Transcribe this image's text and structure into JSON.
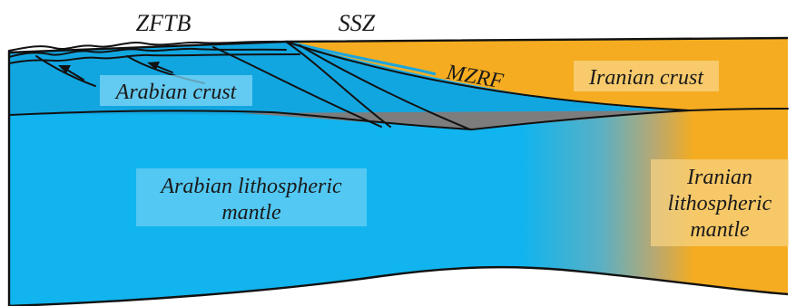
{
  "labels": {
    "zftb": "ZFTB",
    "ssz": "SSZ",
    "mzrf": "MZRF",
    "arabian_crust": "Arabian crust",
    "iranian_crust": "Iranian crust",
    "arabian_mantle_line1": "Arabian lithospheric",
    "arabian_mantle_line2": "mantle",
    "iranian_mantle_line1": "Iranian",
    "iranian_mantle_line2": "lithospheric",
    "iranian_mantle_line3": "mantle"
  },
  "colors": {
    "arabian_crust": "#12a6e1",
    "arabian_mantle": "#11b4ee",
    "iranian": "#f5ac20",
    "mantle_transition": "#8fa87a",
    "wedge_gray": "#7d7d7d",
    "label_box": "#7fd6f5",
    "label_box_iran": "#f8d486",
    "outline": "#111111"
  },
  "legend_icons": {
    "thrust_arrow": "thrust-arrow-icon"
  }
}
